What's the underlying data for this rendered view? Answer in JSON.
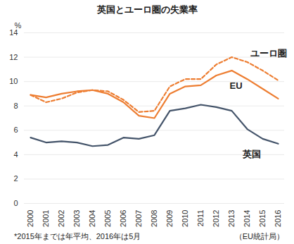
{
  "chart_data": {
    "type": "line",
    "title": "英国とユーロ圏の失業率",
    "ylabel": "%",
    "caption": "*2015年までは年平均、2016年は5月",
    "source": "（EU統計局）",
    "categories": [
      "2000",
      "2001",
      "2002",
      "2003",
      "2004",
      "2005",
      "2006",
      "2007",
      "2008",
      "2009",
      "2010",
      "2011",
      "2012",
      "2013",
      "2014",
      "2015",
      "2016"
    ],
    "series": [
      {
        "name": "ユーロ圏",
        "color": "#ED7D31",
        "line_style": "dashed",
        "values": [
          8.9,
          8.3,
          8.6,
          9.1,
          9.3,
          9.2,
          8.5,
          7.5,
          7.6,
          9.6,
          10.2,
          10.2,
          11.4,
          12.0,
          11.6,
          10.9,
          10.1
        ]
      },
      {
        "name": "EU",
        "color": "#ED7D31",
        "line_style": "solid",
        "values": [
          8.9,
          8.7,
          9.0,
          9.2,
          9.3,
          9.0,
          8.3,
          7.2,
          7.0,
          9.0,
          9.6,
          9.7,
          10.5,
          10.9,
          10.2,
          9.4,
          8.6
        ]
      },
      {
        "name": "英国",
        "color": "#44546A",
        "line_style": "solid",
        "values": [
          5.4,
          5.0,
          5.1,
          5.0,
          4.7,
          4.8,
          5.4,
          5.3,
          5.6,
          7.6,
          7.8,
          8.1,
          7.9,
          7.6,
          6.1,
          5.3,
          4.9
        ]
      }
    ],
    "ylim": [
      0,
      14
    ],
    "yticks": [
      0,
      2,
      4,
      6,
      8,
      10,
      12,
      14
    ],
    "grid": true,
    "legend": "none"
  }
}
